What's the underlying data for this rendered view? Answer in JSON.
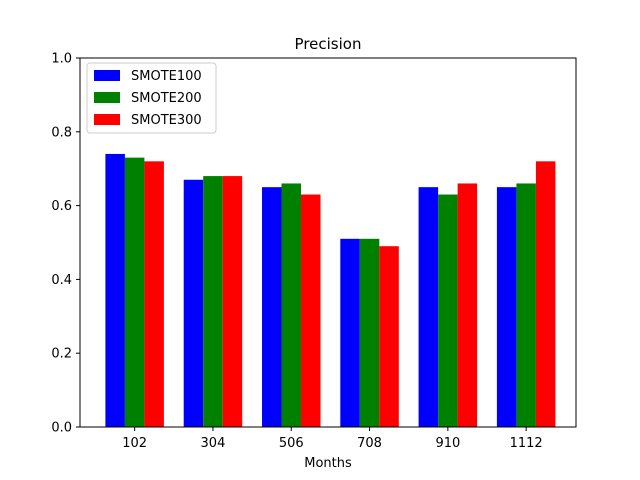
{
  "chart_data": {
    "type": "bar",
    "title": "Precision",
    "xlabel": "Months",
    "ylabel": "",
    "categories": [
      "102",
      "304",
      "506",
      "708",
      "910",
      "1112"
    ],
    "ylim": [
      0,
      1.0
    ],
    "yticks": [
      "0.0",
      "0.2",
      "0.4",
      "0.6",
      "0.8",
      "1.0"
    ],
    "grid": false,
    "legend_position": "top-left",
    "series": [
      {
        "name": "SMOTE100",
        "color": "#0000ff",
        "values": [
          0.74,
          0.67,
          0.65,
          0.51,
          0.65,
          0.65
        ]
      },
      {
        "name": "SMOTE200",
        "color": "#008000",
        "values": [
          0.73,
          0.68,
          0.66,
          0.51,
          0.63,
          0.66
        ]
      },
      {
        "name": "SMOTE300",
        "color": "#ff0000",
        "values": [
          0.72,
          0.68,
          0.63,
          0.49,
          0.66,
          0.72
        ]
      }
    ]
  }
}
